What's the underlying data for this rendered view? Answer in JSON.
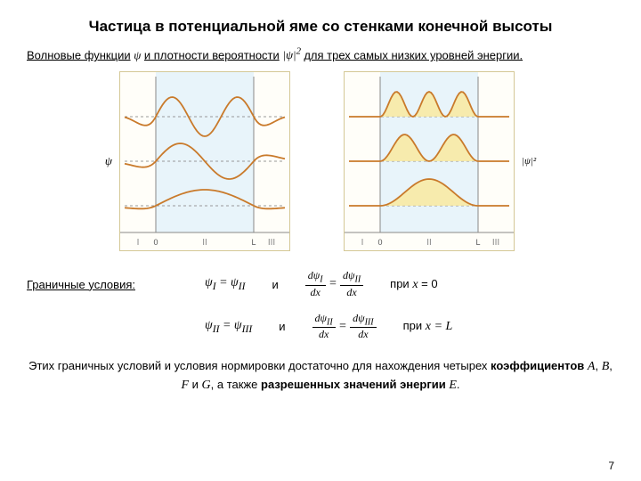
{
  "title": "Частица в потенциальной яме со стенками конечной высоты",
  "subtitle_parts": {
    "p1": "Волновые функции",
    "sym1": "ψ",
    "p2": "и плотности вероятности",
    "sym2": "|ψ|",
    "sym2_sup": "2",
    "p3": "для трех самых низких уровней энергии."
  },
  "left_axis": "ψ",
  "right_axis": "|ψ|²",
  "regions": [
    "I",
    "II",
    "III"
  ],
  "x_ticks": [
    "0",
    "L"
  ],
  "left_chart": {
    "well_color": "#e8f4fa",
    "line_color": "#c97a2b",
    "fill_color": "#fae89a",
    "curves": [
      {
        "level": 150,
        "nodes": 0,
        "amp": 18
      },
      {
        "level": 100,
        "nodes": 1,
        "amp": 20
      },
      {
        "level": 50,
        "nodes": 2,
        "amp": 22
      }
    ]
  },
  "right_chart": {
    "well_color": "#e8f4fa",
    "line_color": "#c97a2b",
    "fill_color": "#fae89a",
    "curves": [
      {
        "level": 150,
        "peaks": 1,
        "amp": 30
      },
      {
        "level": 100,
        "peaks": 2,
        "amp": 30
      },
      {
        "level": 50,
        "peaks": 3,
        "amp": 28
      }
    ]
  },
  "boundary_label": "Граничные условия:",
  "conditions": [
    {
      "eq1_l": "ψ",
      "eq1_ls": "I",
      "eq1_r": "ψ",
      "eq1_rs": "II",
      "mid": "и",
      "d_top_l": "dψ",
      "d_top_ls": "I",
      "d_top_r": "dψ",
      "d_top_rs": "II",
      "d_bot": "dx",
      "at": "при",
      "x": "x",
      "val": "= 0"
    },
    {
      "eq1_l": "ψ",
      "eq1_ls": "II",
      "eq1_r": "ψ",
      "eq1_rs": "III",
      "mid": "и",
      "d_top_l": "dψ",
      "d_top_ls": "II",
      "d_top_r": "dψ",
      "d_top_rs": "III",
      "d_bot": "dx",
      "at": "при",
      "x": "x",
      "val": "= L"
    }
  ],
  "footer": {
    "line1": "Этих граничных условий и условия нормировки достаточно для нахождения четырех",
    "coef_prefix": "коэффициентов ",
    "A": "A",
    "B": "B",
    "F": "F",
    "G": "G",
    "mid": ", а также ",
    "rest": "разрешенных значений энергии ",
    "E": "E",
    "dot": "."
  },
  "page_number": "7"
}
